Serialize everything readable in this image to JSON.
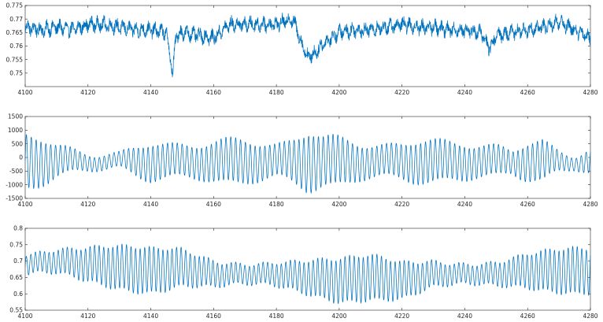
{
  "chart_data": [
    {
      "type": "line",
      "title": "",
      "xlabel": "",
      "ylabel": "",
      "xlim": [
        4100,
        4280
      ],
      "ylim": [
        0.745,
        0.775
      ],
      "x_ticks": [
        "4100",
        "4120",
        "4140",
        "4160",
        "4180",
        "4200",
        "4220",
        "4240",
        "4260",
        "4280"
      ],
      "y_ticks": [
        "0.75",
        "0.755",
        "0.76",
        "0.765",
        "0.77",
        "0.775"
      ],
      "grid": false,
      "line_color": "#0072BD",
      "description_of_series": "noisy signal around 0.766",
      "series": [
        {
          "x": [
            4100,
            4105,
            4110,
            4115,
            4120,
            4125,
            4130,
            4135,
            4140,
            4145,
            4147,
            4148,
            4150,
            4155,
            4160,
            4165,
            4170,
            4175,
            4180,
            4185,
            4186,
            4188,
            4190,
            4192,
            4195,
            4200,
            4205,
            4210,
            4215,
            4220,
            4225,
            4230,
            4235,
            4240,
            4245,
            4248,
            4250,
            4255,
            4260,
            4265,
            4270,
            4275,
            4280
          ],
          "values": [
            0.767,
            0.766,
            0.767,
            0.766,
            0.768,
            0.768,
            0.767,
            0.766,
            0.766,
            0.765,
            0.7495,
            0.764,
            0.765,
            0.764,
            0.763,
            0.768,
            0.768,
            0.768,
            0.768,
            0.77,
            0.768,
            0.761,
            0.756,
            0.757,
            0.761,
            0.765,
            0.766,
            0.766,
            0.767,
            0.768,
            0.767,
            0.767,
            0.766,
            0.766,
            0.765,
            0.759,
            0.764,
            0.765,
            0.766,
            0.767,
            0.769,
            0.766,
            0.763
          ]
        }
      ]
    },
    {
      "type": "line",
      "title": "",
      "xlabel": "",
      "ylabel": "",
      "xlim": [
        4100,
        4280
      ],
      "ylim": [
        -1500,
        1500
      ],
      "x_ticks": [
        "4100",
        "4120",
        "4140",
        "4160",
        "4180",
        "4200",
        "4220",
        "4240",
        "4260",
        "4280"
      ],
      "y_ticks": [
        "-1500",
        "-1000",
        "-500",
        "0",
        "500",
        "1000",
        "1500"
      ],
      "grid": false,
      "line_color": "#0072BD",
      "series": [
        {
          "x": [
            4100,
            4110,
            4120,
            4130,
            4140,
            4150,
            4160,
            4170,
            4180,
            4185,
            4190,
            4195,
            4200,
            4210,
            4220,
            4230,
            4240,
            4250,
            4255,
            4260,
            4265,
            4270,
            4275,
            4280
          ],
          "values": [
            1100,
            600,
            400,
            300,
            700,
            800,
            800,
            800,
            800,
            1000,
            1200,
            900,
            900,
            800,
            700,
            800,
            900,
            600,
            400,
            700,
            900,
            500,
            300,
            500
          ]
        }
      ]
    },
    {
      "type": "line",
      "title": "",
      "xlabel": "",
      "ylabel": "",
      "xlim": [
        4100,
        4280
      ],
      "ylim": [
        0.55,
        0.8
      ],
      "x_ticks": [
        "4100",
        "4120",
        "4140",
        "4160",
        "4180",
        "4200",
        "4220",
        "4240",
        "4260",
        "4280"
      ],
      "y_ticks": [
        "0.55",
        "0.6",
        "0.65",
        "0.7",
        "0.75",
        "0.8"
      ],
      "grid": false,
      "line_color": "#0072BD",
      "series": [
        {
          "x": [
            4100,
            4110,
            4120,
            4130,
            4140,
            4150,
            4160,
            4170,
            4180,
            4190,
            4200,
            4210,
            4220,
            4230,
            4240,
            4250,
            4260,
            4270,
            4280
          ],
          "values": [
            0.69,
            0.7,
            0.69,
            0.68,
            0.67,
            0.68,
            0.66,
            0.66,
            0.66,
            0.65,
            0.64,
            0.65,
            0.64,
            0.66,
            0.66,
            0.66,
            0.67,
            0.67,
            0.67
          ]
        }
      ]
    }
  ]
}
